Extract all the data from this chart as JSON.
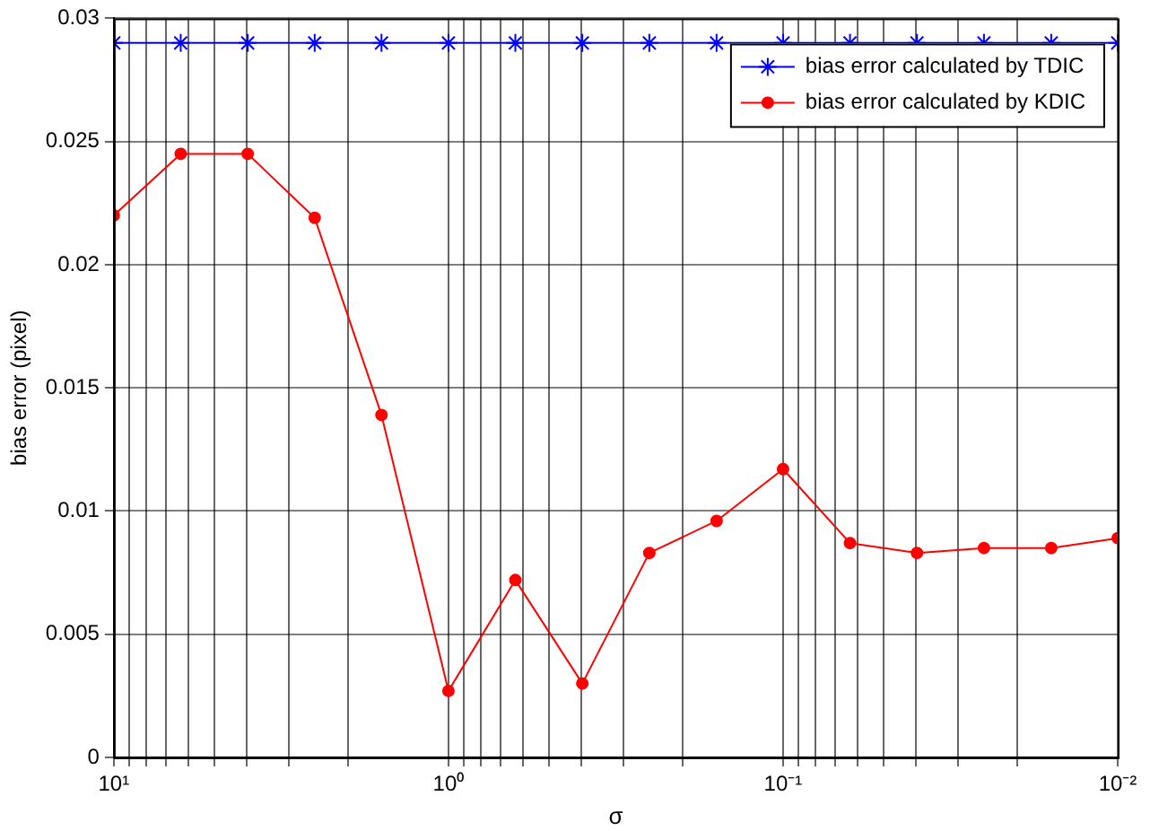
{
  "chart_data": {
    "type": "line",
    "xlabel": "σ",
    "ylabel": "bias error (pixel)",
    "x": [
      10,
      6.31,
      3.98,
      2.51,
      1.585,
      1,
      0.631,
      0.398,
      0.251,
      0.158,
      0.1,
      0.0631,
      0.0398,
      0.0251,
      0.0158,
      0.01
    ],
    "series": [
      {
        "name": "bias error calculated by TDIC",
        "color": "#0000ff",
        "marker": "cross",
        "values": [
          0.029,
          0.029,
          0.029,
          0.029,
          0.029,
          0.029,
          0.029,
          0.029,
          0.029,
          0.029,
          0.029,
          0.029,
          0.029,
          0.029,
          0.029,
          0.029
        ]
      },
      {
        "name": "bias error calculated by KDIC",
        "color": "#ff0000",
        "marker": "circle",
        "values": [
          0.022,
          0.0245,
          0.0245,
          0.0219,
          0.0139,
          0.0027,
          0.0072,
          0.003,
          0.0083,
          0.0096,
          0.0117,
          0.0087,
          0.0083,
          0.0085,
          0.0085,
          0.0089
        ]
      }
    ],
    "log": "x",
    "xlim": [
      10,
      0.01
    ],
    "xticks": [
      {
        "value": 10,
        "label": "10¹"
      },
      {
        "value": 9,
        "label": null
      },
      {
        "value": 8,
        "label": null
      },
      {
        "value": 7,
        "label": null
      },
      {
        "value": 6,
        "label": null
      },
      {
        "value": 5,
        "label": null
      },
      {
        "value": 4,
        "label": null
      },
      {
        "value": 3,
        "label": null
      },
      {
        "value": 2,
        "label": null
      },
      {
        "value": 1,
        "label": "10⁰"
      },
      {
        "value": 0.9,
        "label": null
      },
      {
        "value": 0.8,
        "label": null
      },
      {
        "value": 0.7,
        "label": null
      },
      {
        "value": 0.6,
        "label": null
      },
      {
        "value": 0.5,
        "label": null
      },
      {
        "value": 0.4,
        "label": null
      },
      {
        "value": 0.3,
        "label": null
      },
      {
        "value": 0.2,
        "label": null
      },
      {
        "value": 0.1,
        "label": "10⁻¹"
      },
      {
        "value": 0.09,
        "label": null
      },
      {
        "value": 0.08,
        "label": null
      },
      {
        "value": 0.07,
        "label": null
      },
      {
        "value": 0.06,
        "label": null
      },
      {
        "value": 0.05,
        "label": null
      },
      {
        "value": 0.04,
        "label": null
      },
      {
        "value": 0.03,
        "label": null
      },
      {
        "value": 0.02,
        "label": null
      },
      {
        "value": 0.01,
        "label": "10⁻²"
      }
    ],
    "ylim": [
      0,
      0.03
    ],
    "yticks": [
      0,
      0.005,
      0.01,
      0.015,
      0.02,
      0.025,
      0.03
    ],
    "grid": true,
    "legend": "top right",
    "line_style": "solid"
  }
}
